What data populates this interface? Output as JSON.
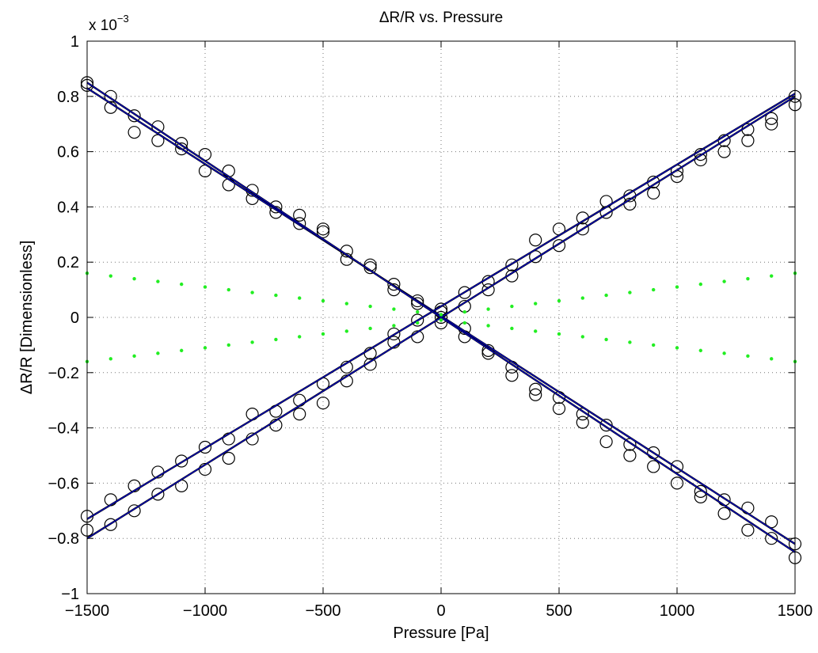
{
  "chart_data": {
    "type": "scatter",
    "title": "ΔR/R vs. Pressure",
    "xlabel": "Pressure [Pa]",
    "ylabel": "ΔR/R [Dimensionless]",
    "y_multiplier": {
      "base": "x 10",
      "exponent": "−3"
    },
    "xlim": [
      -1500,
      1500
    ],
    "ylim": [
      -1,
      1
    ],
    "y_units_scale": 0.001,
    "grid": true,
    "grid_style": "dotted",
    "x_ticks": [
      -1500,
      -1000,
      -500,
      0,
      500,
      1000,
      1500
    ],
    "x_tick_labels": [
      "−1500",
      "−1000",
      "−500",
      "0",
      "500",
      "1000",
      "1500"
    ],
    "y_ticks": [
      -1,
      -0.8,
      -0.6,
      -0.4,
      -0.2,
      0,
      0.2,
      0.4,
      0.6,
      0.8,
      1
    ],
    "y_tick_labels": [
      "−1",
      "−0.8",
      "−0.6",
      "−0.4",
      "−0.2",
      "0",
      "0.2",
      "0.4",
      "0.6",
      "0.8",
      "1"
    ],
    "x": [
      -1500,
      -1400,
      -1300,
      -1200,
      -1100,
      -1000,
      -900,
      -800,
      -700,
      -600,
      -500,
      -400,
      -300,
      -200,
      -100,
      0,
      100,
      200,
      300,
      400,
      500,
      600,
      700,
      800,
      900,
      1000,
      1100,
      1200,
      1300,
      1400,
      1500
    ],
    "colors": {
      "measured": "#000000",
      "fit": "#0000cc",
      "fit_shadow": "#000000",
      "bounds": "#22ee22",
      "grid": "#777777",
      "axes": "#000000"
    },
    "series": [
      {
        "kind": "measured",
        "marker": "circle",
        "values": [
          0.85,
          0.8,
          0.73,
          0.69,
          0.63,
          0.59,
          0.53,
          0.46,
          0.4,
          0.37,
          0.32,
          0.24,
          0.19,
          0.12,
          0.06,
          0.02,
          -0.04,
          -0.12,
          -0.18,
          -0.26,
          -0.29,
          -0.35,
          -0.39,
          -0.46,
          -0.49,
          -0.54,
          -0.63,
          -0.66,
          -0.69,
          -0.74,
          -0.82
        ]
      },
      {
        "kind": "measured",
        "marker": "circle",
        "values": [
          0.84,
          0.76,
          0.67,
          0.64,
          0.61,
          0.53,
          0.48,
          0.43,
          0.38,
          0.34,
          0.31,
          0.21,
          0.18,
          0.1,
          0.05,
          -0.02,
          -0.07,
          -0.13,
          -0.21,
          -0.28,
          -0.33,
          -0.38,
          -0.45,
          -0.5,
          -0.54,
          -0.6,
          -0.65,
          -0.71,
          -0.77,
          -0.8,
          -0.87
        ]
      },
      {
        "kind": "measured",
        "marker": "circle",
        "values": [
          -0.72,
          -0.66,
          -0.61,
          -0.56,
          -0.52,
          -0.47,
          -0.44,
          -0.35,
          -0.34,
          -0.3,
          -0.24,
          -0.18,
          -0.13,
          -0.06,
          -0.01,
          0.03,
          0.09,
          0.13,
          0.19,
          0.28,
          0.32,
          0.36,
          0.42,
          0.44,
          0.49,
          0.53,
          0.59,
          0.64,
          0.68,
          0.72,
          0.8
        ]
      },
      {
        "kind": "measured",
        "marker": "circle",
        "values": [
          -0.77,
          -0.75,
          -0.7,
          -0.64,
          -0.61,
          -0.55,
          -0.51,
          -0.44,
          -0.39,
          -0.35,
          -0.31,
          -0.23,
          -0.17,
          -0.09,
          -0.07,
          0.0,
          0.04,
          0.1,
          0.15,
          0.22,
          0.26,
          0.32,
          0.38,
          0.41,
          0.45,
          0.51,
          0.57,
          0.6,
          0.64,
          0.7,
          0.77
        ]
      },
      {
        "kind": "fit",
        "line": true,
        "values": [
          0.83,
          0.775,
          0.72,
          0.665,
          0.61,
          0.555,
          0.5,
          0.445,
          0.39,
          0.335,
          0.28,
          0.225,
          0.17,
          0.115,
          0.06,
          0.005,
          -0.05,
          -0.105,
          -0.16,
          -0.215,
          -0.27,
          -0.325,
          -0.38,
          -0.435,
          -0.49,
          -0.545,
          -0.6,
          -0.655,
          -0.71,
          -0.765,
          -0.82
        ]
      },
      {
        "kind": "fit",
        "line": true,
        "values": [
          0.85,
          0.7933,
          0.7367,
          0.68,
          0.6233,
          0.5667,
          0.51,
          0.4533,
          0.3967,
          0.34,
          0.2833,
          0.2267,
          0.17,
          0.1133,
          0.0567,
          0.0,
          -0.0567,
          -0.1133,
          -0.17,
          -0.2267,
          -0.2833,
          -0.34,
          -0.3967,
          -0.4533,
          -0.51,
          -0.5667,
          -0.6233,
          -0.68,
          -0.7367,
          -0.7933,
          -0.85
        ]
      },
      {
        "kind": "fit",
        "line": true,
        "values": [
          -0.73,
          -0.6787,
          -0.6273,
          -0.576,
          -0.5247,
          -0.4733,
          -0.422,
          -0.3707,
          -0.3193,
          -0.268,
          -0.2167,
          -0.1653,
          -0.114,
          -0.0627,
          -0.0113,
          0.04,
          0.0913,
          0.1427,
          0.194,
          0.2453,
          0.2967,
          0.348,
          0.3993,
          0.4507,
          0.502,
          0.5533,
          0.6047,
          0.656,
          0.7073,
          0.7587,
          0.81
        ]
      },
      {
        "kind": "fit",
        "line": true,
        "values": [
          -0.8,
          -0.7467,
          -0.6933,
          -0.64,
          -0.5867,
          -0.5333,
          -0.48,
          -0.4267,
          -0.3733,
          -0.32,
          -0.2667,
          -0.2133,
          -0.16,
          -0.1067,
          -0.0533,
          0.0,
          0.0533,
          0.1067,
          0.16,
          0.2133,
          0.2667,
          0.32,
          0.3733,
          0.4267,
          0.48,
          0.5333,
          0.5867,
          0.64,
          0.6933,
          0.7467,
          0.8
        ]
      },
      {
        "kind": "bound",
        "marker": "dot",
        "values": [
          0.16,
          0.15,
          0.14,
          0.13,
          0.12,
          0.11,
          0.1,
          0.09,
          0.08,
          0.07,
          0.06,
          0.05,
          0.04,
          0.03,
          0.02,
          0.01,
          0.02,
          0.03,
          0.04,
          0.05,
          0.06,
          0.07,
          0.08,
          0.09,
          0.1,
          0.11,
          0.12,
          0.13,
          0.14,
          0.15,
          0.16
        ]
      },
      {
        "kind": "bound",
        "marker": "dot",
        "values": [
          -0.16,
          -0.15,
          -0.14,
          -0.13,
          -0.12,
          -0.11,
          -0.1,
          -0.09,
          -0.08,
          -0.07,
          -0.06,
          -0.05,
          -0.04,
          -0.03,
          -0.02,
          -0.01,
          -0.02,
          -0.03,
          -0.04,
          -0.05,
          -0.06,
          -0.07,
          -0.08,
          -0.09,
          -0.1,
          -0.11,
          -0.12,
          -0.13,
          -0.14,
          -0.15,
          -0.16
        ]
      }
    ]
  }
}
